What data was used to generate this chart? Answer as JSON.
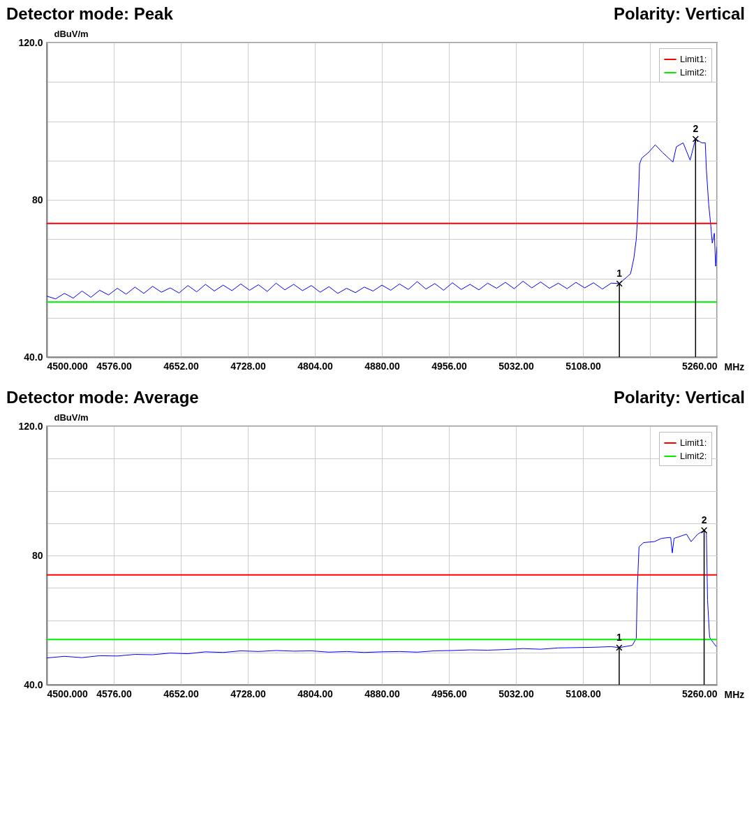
{
  "chart_data": [
    {
      "type": "line",
      "title": "Detector mode: Peak",
      "annotations": [
        "Polarity: Vertical",
        {
          "text": "1",
          "x": 5149.3,
          "y": 58.7
        },
        {
          "text": "2",
          "x": 5235.7,
          "y": 95.5
        }
      ],
      "xlabel": "MHz",
      "ylabel": "dBuV/m",
      "xlim": [
        4500,
        5260
      ],
      "ylim": [
        40,
        120
      ],
      "xticks": [
        {
          "value": 4500,
          "label": "4500.000"
        },
        {
          "value": 4576,
          "label": "4576.00"
        },
        {
          "value": 4652,
          "label": "4652.00"
        },
        {
          "value": 4728,
          "label": "4728.00"
        },
        {
          "value": 4804,
          "label": "4804.00"
        },
        {
          "value": 4880,
          "label": "4880.00"
        },
        {
          "value": 4956,
          "label": "4956.00"
        },
        {
          "value": 5032,
          "label": "5032.00"
        },
        {
          "value": 5108,
          "label": "5108.00"
        },
        {
          "value": 5184,
          "label": null
        },
        {
          "value": 5260,
          "label": "5260.00"
        }
      ],
      "yticks": [
        {
          "value": 40,
          "label": "40.0"
        },
        {
          "value": 50,
          "label": null
        },
        {
          "value": 60,
          "label": null
        },
        {
          "value": 70,
          "label": null
        },
        80,
        {
          "value": 90,
          "label": null
        },
        {
          "value": 100,
          "label": null
        },
        {
          "value": 110,
          "label": null
        },
        {
          "value": 120,
          "label": "120.0"
        }
      ],
      "grid": true,
      "legend": "top right",
      "ref_lines": [
        {
          "axis": "y",
          "value": 74,
          "label": "Limit1:",
          "color": "#ff0000"
        },
        {
          "axis": "y",
          "value": 54,
          "label": "Limit2:",
          "color": "#00ee00"
        }
      ],
      "series": [
        {
          "color": "#0000ff",
          "x": [
            4500,
            4510,
            4520,
            4530,
            4540,
            4550,
            4560,
            4570,
            4580,
            4590,
            4600,
            4610,
            4620,
            4630,
            4640,
            4650,
            4660,
            4670,
            4680,
            4690,
            4700,
            4710,
            4720,
            4730,
            4740,
            4750,
            4760,
            4770,
            4780,
            4790,
            4800,
            4810,
            4820,
            4830,
            4840,
            4850,
            4860,
            4870,
            4880,
            4890,
            4900,
            4910,
            4920,
            4930,
            4940,
            4950,
            4960,
            4970,
            4980,
            4990,
            5000,
            5010,
            5020,
            5030,
            5040,
            5050,
            5060,
            5070,
            5080,
            5090,
            5100,
            5110,
            5120,
            5130,
            5140,
            5149.3,
            5162,
            5165.7,
            5168.5,
            5170,
            5171.4,
            5172.2,
            5174.6,
            5182.5,
            5190,
            5198,
            5210,
            5213.9,
            5221.6,
            5229.5,
            5235.7,
            5242.7,
            5246.7,
            5248,
            5250.6,
            5253,
            5254.6,
            5257,
            5258.5,
            5260
          ],
          "values": [
            55.5,
            54.8,
            56.2,
            55.0,
            56.8,
            55.2,
            57.0,
            55.8,
            57.5,
            56.0,
            57.8,
            56.2,
            58.0,
            56.5,
            57.6,
            56.3,
            58.2,
            56.6,
            58.5,
            56.8,
            58.3,
            56.9,
            58.6,
            57.0,
            58.4,
            56.7,
            58.8,
            57.1,
            58.5,
            56.9,
            58.2,
            56.5,
            57.9,
            56.2,
            57.5,
            56.4,
            57.8,
            56.8,
            58.3,
            57.0,
            58.6,
            57.2,
            59.2,
            57.3,
            58.7,
            57.0,
            58.9,
            57.2,
            58.5,
            57.1,
            58.8,
            57.5,
            59.0,
            57.4,
            59.3,
            57.6,
            59.1,
            57.5,
            58.8,
            57.4,
            59.0,
            57.6,
            58.9,
            57.3,
            58.8,
            58.7,
            61.2,
            65.1,
            70.0,
            75.9,
            83.7,
            89.1,
            90.6,
            92.1,
            94.0,
            92.1,
            89.6,
            93.5,
            94.5,
            90.1,
            95.5,
            94.5,
            94.5,
            87.6,
            78.8,
            73.4,
            69.0,
            71.5,
            63.1,
            68.1
          ]
        }
      ]
    },
    {
      "type": "line",
      "title": "Detector mode: Average",
      "annotations": [
        "Polarity: Vertical",
        {
          "text": "1",
          "x": 5149.1,
          "y": 51.5
        },
        {
          "text": "2",
          "x": 5245.4,
          "y": 87.8
        }
      ],
      "xlabel": "MHz",
      "ylabel": "dBuV/m",
      "xlim": [
        4500,
        5260
      ],
      "ylim": [
        40,
        120
      ],
      "xticks": [
        {
          "value": 4500,
          "label": "4500.000"
        },
        {
          "value": 4576,
          "label": "4576.00"
        },
        {
          "value": 4652,
          "label": "4652.00"
        },
        {
          "value": 4728,
          "label": "4728.00"
        },
        {
          "value": 4804,
          "label": "4804.00"
        },
        {
          "value": 4880,
          "label": "4880.00"
        },
        {
          "value": 4956,
          "label": "4956.00"
        },
        {
          "value": 5032,
          "label": "5032.00"
        },
        {
          "value": 5108,
          "label": "5108.00"
        },
        {
          "value": 5184,
          "label": null
        },
        {
          "value": 5260,
          "label": "5260.00"
        }
      ],
      "yticks": [
        {
          "value": 40,
          "label": "40.0"
        },
        {
          "value": 50,
          "label": null
        },
        {
          "value": 60,
          "label": null
        },
        {
          "value": 70,
          "label": null
        },
        80,
        {
          "value": 90,
          "label": null
        },
        {
          "value": 100,
          "label": null
        },
        {
          "value": 110,
          "label": null
        },
        {
          "value": 120,
          "label": "120.0"
        }
      ],
      "grid": true,
      "legend": "top right",
      "ref_lines": [
        {
          "axis": "y",
          "value": 74,
          "label": "Limit1:",
          "color": "#ff0000"
        },
        {
          "axis": "y",
          "value": 54,
          "label": "Limit2:",
          "color": "#00ee00"
        }
      ],
      "series": [
        {
          "color": "#0000ff",
          "x": [
            4500,
            4520,
            4540,
            4560,
            4580,
            4600,
            4620,
            4640,
            4660,
            4680,
            4700,
            4720,
            4740,
            4760,
            4780,
            4800,
            4820,
            4840,
            4860,
            4880,
            4900,
            4920,
            4940,
            4960,
            4980,
            5000,
            5020,
            5040,
            5060,
            5080,
            5100,
            5120,
            5140,
            5149.1,
            5164,
            5168.5,
            5169.5,
            5171.6,
            5176.8,
            5189,
            5197,
            5207.5,
            5209.3,
            5211.3,
            5225.4,
            5230.6,
            5238.2,
            5245.4,
            5248,
            5249.3,
            5251.6,
            5255.6,
            5259.2
          ],
          "values": [
            48.3,
            48.8,
            48.4,
            49.0,
            48.9,
            49.4,
            49.3,
            49.8,
            49.6,
            50.2,
            50.0,
            50.5,
            50.3,
            50.6,
            50.4,
            50.5,
            50.1,
            50.3,
            50.0,
            50.2,
            50.3,
            50.1,
            50.5,
            50.6,
            50.8,
            50.7,
            50.9,
            51.2,
            51.0,
            51.4,
            51.5,
            51.6,
            51.8,
            51.5,
            52.2,
            54.4,
            68.8,
            82.7,
            84.0,
            84.3,
            85.3,
            85.6,
            80.8,
            85.3,
            86.6,
            84.3,
            86.6,
            87.8,
            86.9,
            66.3,
            54.7,
            53.1,
            51.8
          ]
        }
      ]
    }
  ]
}
